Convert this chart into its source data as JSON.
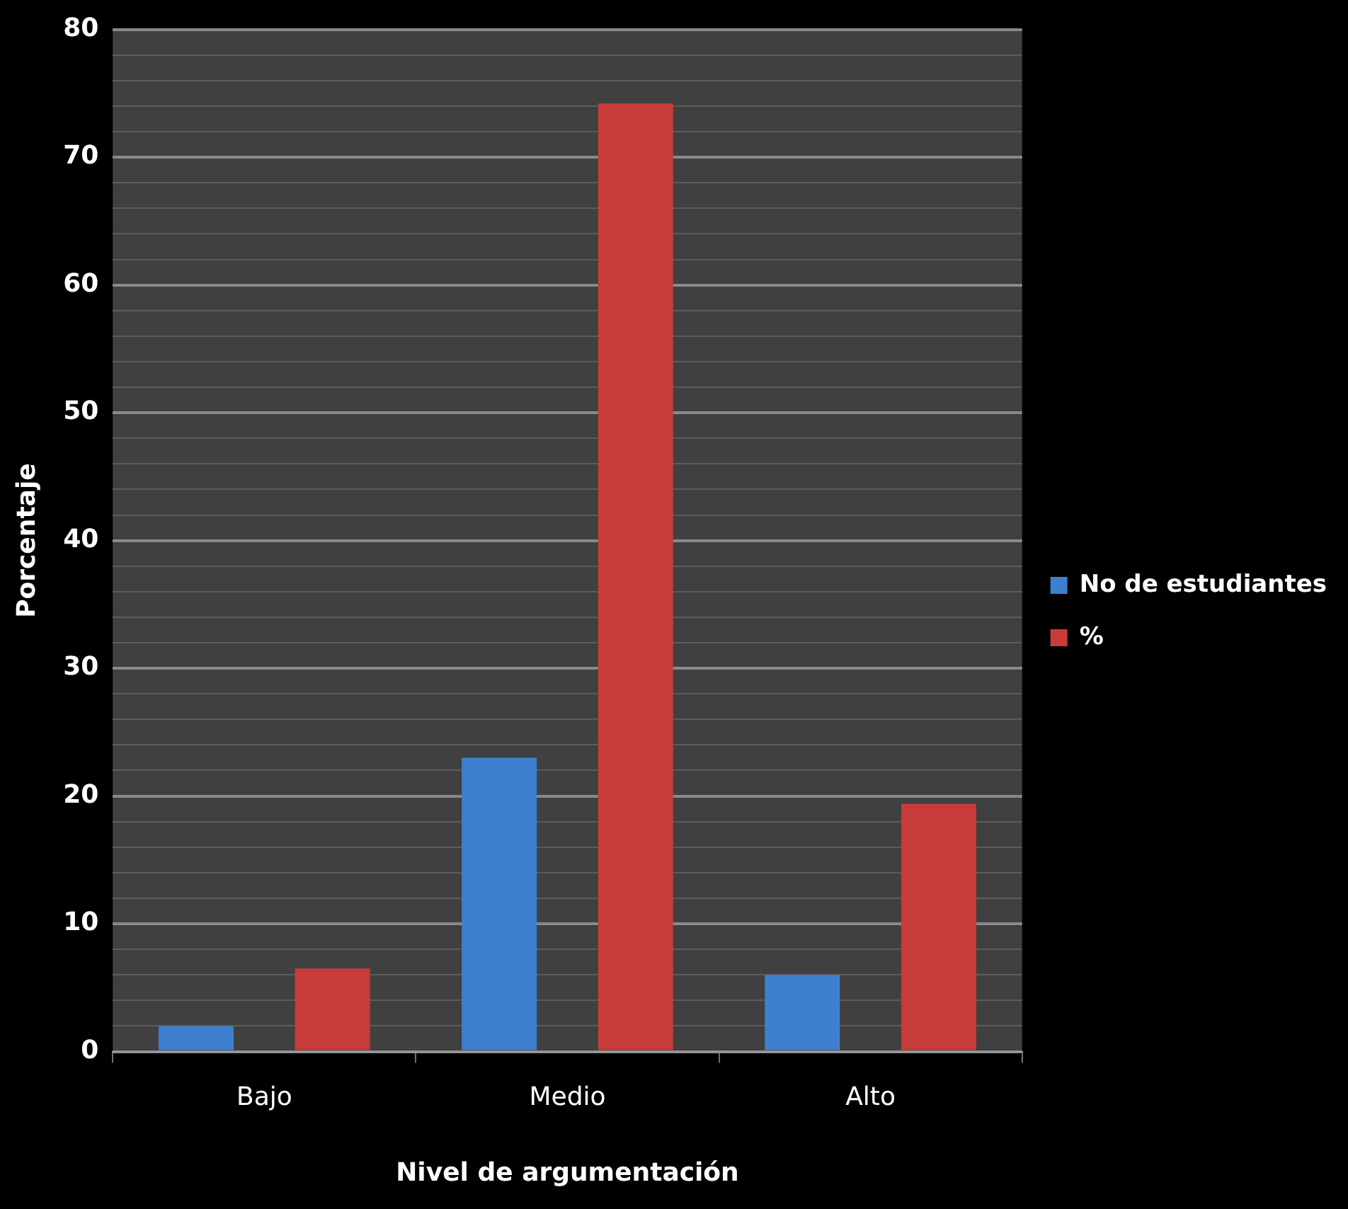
{
  "chart_data": {
    "type": "bar",
    "xlabel": "Nivel de argumentación",
    "ylabel": "Porcentaje",
    "categories": [
      "Bajo",
      "Medio",
      "Alto"
    ],
    "series": [
      {
        "name": "No de estudiantes",
        "color": "#3f7fcf",
        "values": [
          2,
          23,
          6
        ]
      },
      {
        "name": "%",
        "color": "#c73c3a",
        "values": [
          6.5,
          74.2,
          19.4
        ]
      }
    ],
    "ylim": [
      0,
      80
    ],
    "yticks": [
      0,
      {
        "value": 2,
        "label": null
      },
      {
        "value": 4,
        "label": null
      },
      {
        "value": 6,
        "label": null
      },
      {
        "value": 8,
        "label": null
      },
      10,
      {
        "value": 12,
        "label": null
      },
      {
        "value": 14,
        "label": null
      },
      {
        "value": 16,
        "label": null
      },
      {
        "value": 18,
        "label": null
      },
      20,
      {
        "value": 22,
        "label": null
      },
      {
        "value": 24,
        "label": null
      },
      {
        "value": 26,
        "label": null
      },
      {
        "value": 28,
        "label": null
      },
      30,
      {
        "value": 32,
        "label": null
      },
      {
        "value": 34,
        "label": null
      },
      {
        "value": 36,
        "label": null
      },
      {
        "value": 38,
        "label": null
      },
      40,
      {
        "value": 42,
        "label": null
      },
      {
        "value": 44,
        "label": null
      },
      {
        "value": 46,
        "label": null
      },
      {
        "value": 48,
        "label": null
      },
      50,
      {
        "value": 52,
        "label": null
      },
      {
        "value": 54,
        "label": null
      },
      {
        "value": 56,
        "label": null
      },
      {
        "value": 58,
        "label": null
      },
      60,
      {
        "value": 62,
        "label": null
      },
      {
        "value": 64,
        "label": null
      },
      {
        "value": 66,
        "label": null
      },
      {
        "value": 68,
        "label": null
      },
      70,
      {
        "value": 72,
        "label": null
      },
      {
        "value": 74,
        "label": null
      },
      {
        "value": 76,
        "label": null
      },
      {
        "value": 78,
        "label": null
      },
      80
    ],
    "grid": true,
    "legend": "right"
  }
}
